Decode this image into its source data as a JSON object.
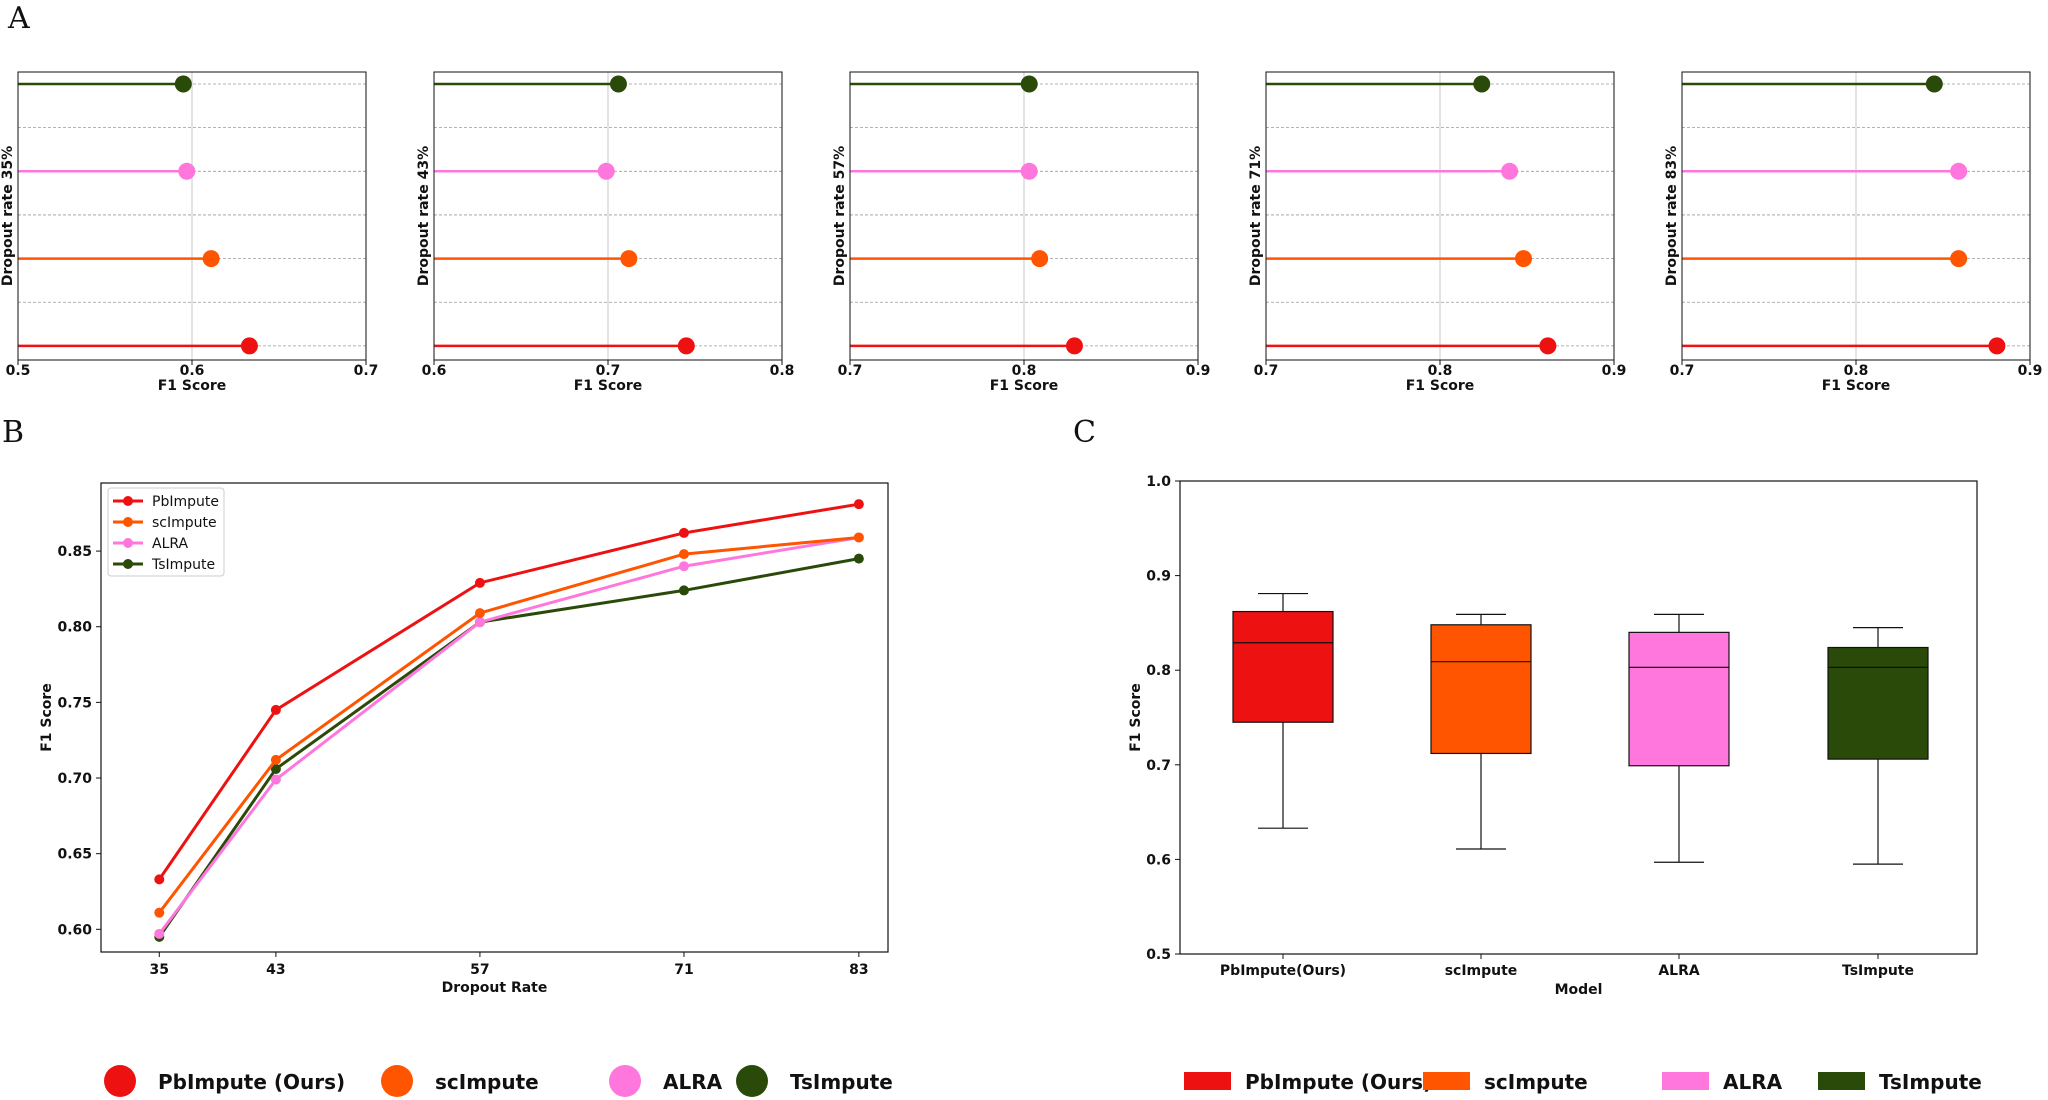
{
  "panels": {
    "a": "A",
    "b": "B",
    "c": "C"
  },
  "colors": {
    "PbImpute": "#ee1111",
    "scImpute": "#ff5500",
    "ALRA": "#ff77dd",
    "TsImpute": "#2a4a0a"
  },
  "chart_data": [
    {
      "id": "A",
      "type": "lollipop",
      "xlabel": "F1 Score",
      "series_order_top_to_bottom": [
        "TsImpute",
        "ALRA",
        "scImpute",
        "PbImpute"
      ],
      "subplots": [
        {
          "ylabel": "Dropout rate 35%",
          "xlim": [
            0.5,
            0.7
          ],
          "xticks": [
            "0.5",
            "0.6",
            "0.7"
          ],
          "values": {
            "TsImpute": 0.595,
            "ALRA": 0.597,
            "scImpute": 0.611,
            "PbImpute": 0.633
          }
        },
        {
          "ylabel": "Dropout rate 43%",
          "xlim": [
            0.6,
            0.8
          ],
          "xticks": [
            "0.6",
            "0.7",
            "0.8"
          ],
          "values": {
            "TsImpute": 0.706,
            "ALRA": 0.699,
            "scImpute": 0.712,
            "PbImpute": 0.745
          }
        },
        {
          "ylabel": "Dropout rate 57%",
          "xlim": [
            0.7,
            0.9
          ],
          "xticks": [
            "0.7",
            "0.8",
            "0.9"
          ],
          "values": {
            "TsImpute": 0.803,
            "ALRA": 0.803,
            "scImpute": 0.809,
            "PbImpute": 0.829
          }
        },
        {
          "ylabel": "Dropout rate 71%",
          "xlim": [
            0.7,
            0.9
          ],
          "xticks": [
            "0.7",
            "0.8",
            "0.9"
          ],
          "values": {
            "TsImpute": 0.824,
            "ALRA": 0.84,
            "scImpute": 0.848,
            "PbImpute": 0.862
          }
        },
        {
          "ylabel": "Dropout rate 83%",
          "xlim": [
            0.7,
            0.9
          ],
          "xticks": [
            "0.7",
            "0.8",
            "0.9"
          ],
          "values": {
            "TsImpute": 0.845,
            "ALRA": 0.859,
            "scImpute": 0.859,
            "PbImpute": 0.881
          }
        }
      ]
    },
    {
      "id": "B",
      "type": "line",
      "xlabel": "Dropout Rate",
      "ylabel": "F1 Score",
      "x": [
        35,
        43,
        57,
        71,
        83
      ],
      "xlim": [
        31,
        85
      ],
      "ylim": [
        0.585,
        0.895
      ],
      "yticks": [
        "0.60",
        "0.65",
        "0.70",
        "0.75",
        "0.80",
        "0.85"
      ],
      "xticks": [
        "35",
        "43",
        "57",
        "71",
        "83"
      ],
      "legend": "top-left",
      "series": [
        {
          "name": "PbImpute",
          "values": [
            0.633,
            0.745,
            0.829,
            0.862,
            0.881
          ]
        },
        {
          "name": "scImpute",
          "values": [
            0.611,
            0.712,
            0.809,
            0.848,
            0.859
          ]
        },
        {
          "name": "ALRA",
          "values": [
            0.597,
            0.699,
            0.803,
            0.84,
            0.859
          ]
        },
        {
          "name": "TsImpute",
          "values": [
            0.595,
            0.706,
            0.803,
            0.824,
            0.845
          ]
        }
      ]
    },
    {
      "id": "C",
      "type": "box",
      "xlabel": "Model",
      "ylabel": "F1 Score",
      "ylim": [
        0.5,
        1.0
      ],
      "yticks": [
        "0.5",
        "0.6",
        "0.7",
        "0.8",
        "0.9",
        "1.0"
      ],
      "categories": [
        "PbImpute(Ours)",
        "scImpute",
        "ALRA",
        "TsImpute"
      ],
      "boxes": [
        {
          "series": "PbImpute",
          "min": 0.633,
          "q1": 0.745,
          "median": 0.829,
          "q3": 0.862,
          "max": 0.881
        },
        {
          "series": "scImpute",
          "min": 0.611,
          "q1": 0.712,
          "median": 0.809,
          "q3": 0.848,
          "max": 0.859
        },
        {
          "series": "ALRA",
          "min": 0.597,
          "q1": 0.699,
          "median": 0.803,
          "q3": 0.84,
          "max": 0.859
        },
        {
          "series": "TsImpute",
          "min": 0.595,
          "q1": 0.706,
          "median": 0.803,
          "q3": 0.824,
          "max": 0.845
        }
      ]
    }
  ],
  "legend_b": {
    "items": [
      {
        "series": "PbImpute",
        "label": "PbImpute (Ours)"
      },
      {
        "series": "scImpute",
        "label": "scImpute"
      },
      {
        "series": "ALRA",
        "label": "ALRA"
      },
      {
        "series": "TsImpute",
        "label": "TsImpute"
      }
    ]
  },
  "legend_c": {
    "items": [
      {
        "series": "PbImpute",
        "label": "PbImpute (Ours)"
      },
      {
        "series": "scImpute",
        "label": "scImpute"
      },
      {
        "series": "ALRA",
        "label": "ALRA"
      },
      {
        "series": "TsImpute",
        "label": "TsImpute"
      }
    ]
  }
}
